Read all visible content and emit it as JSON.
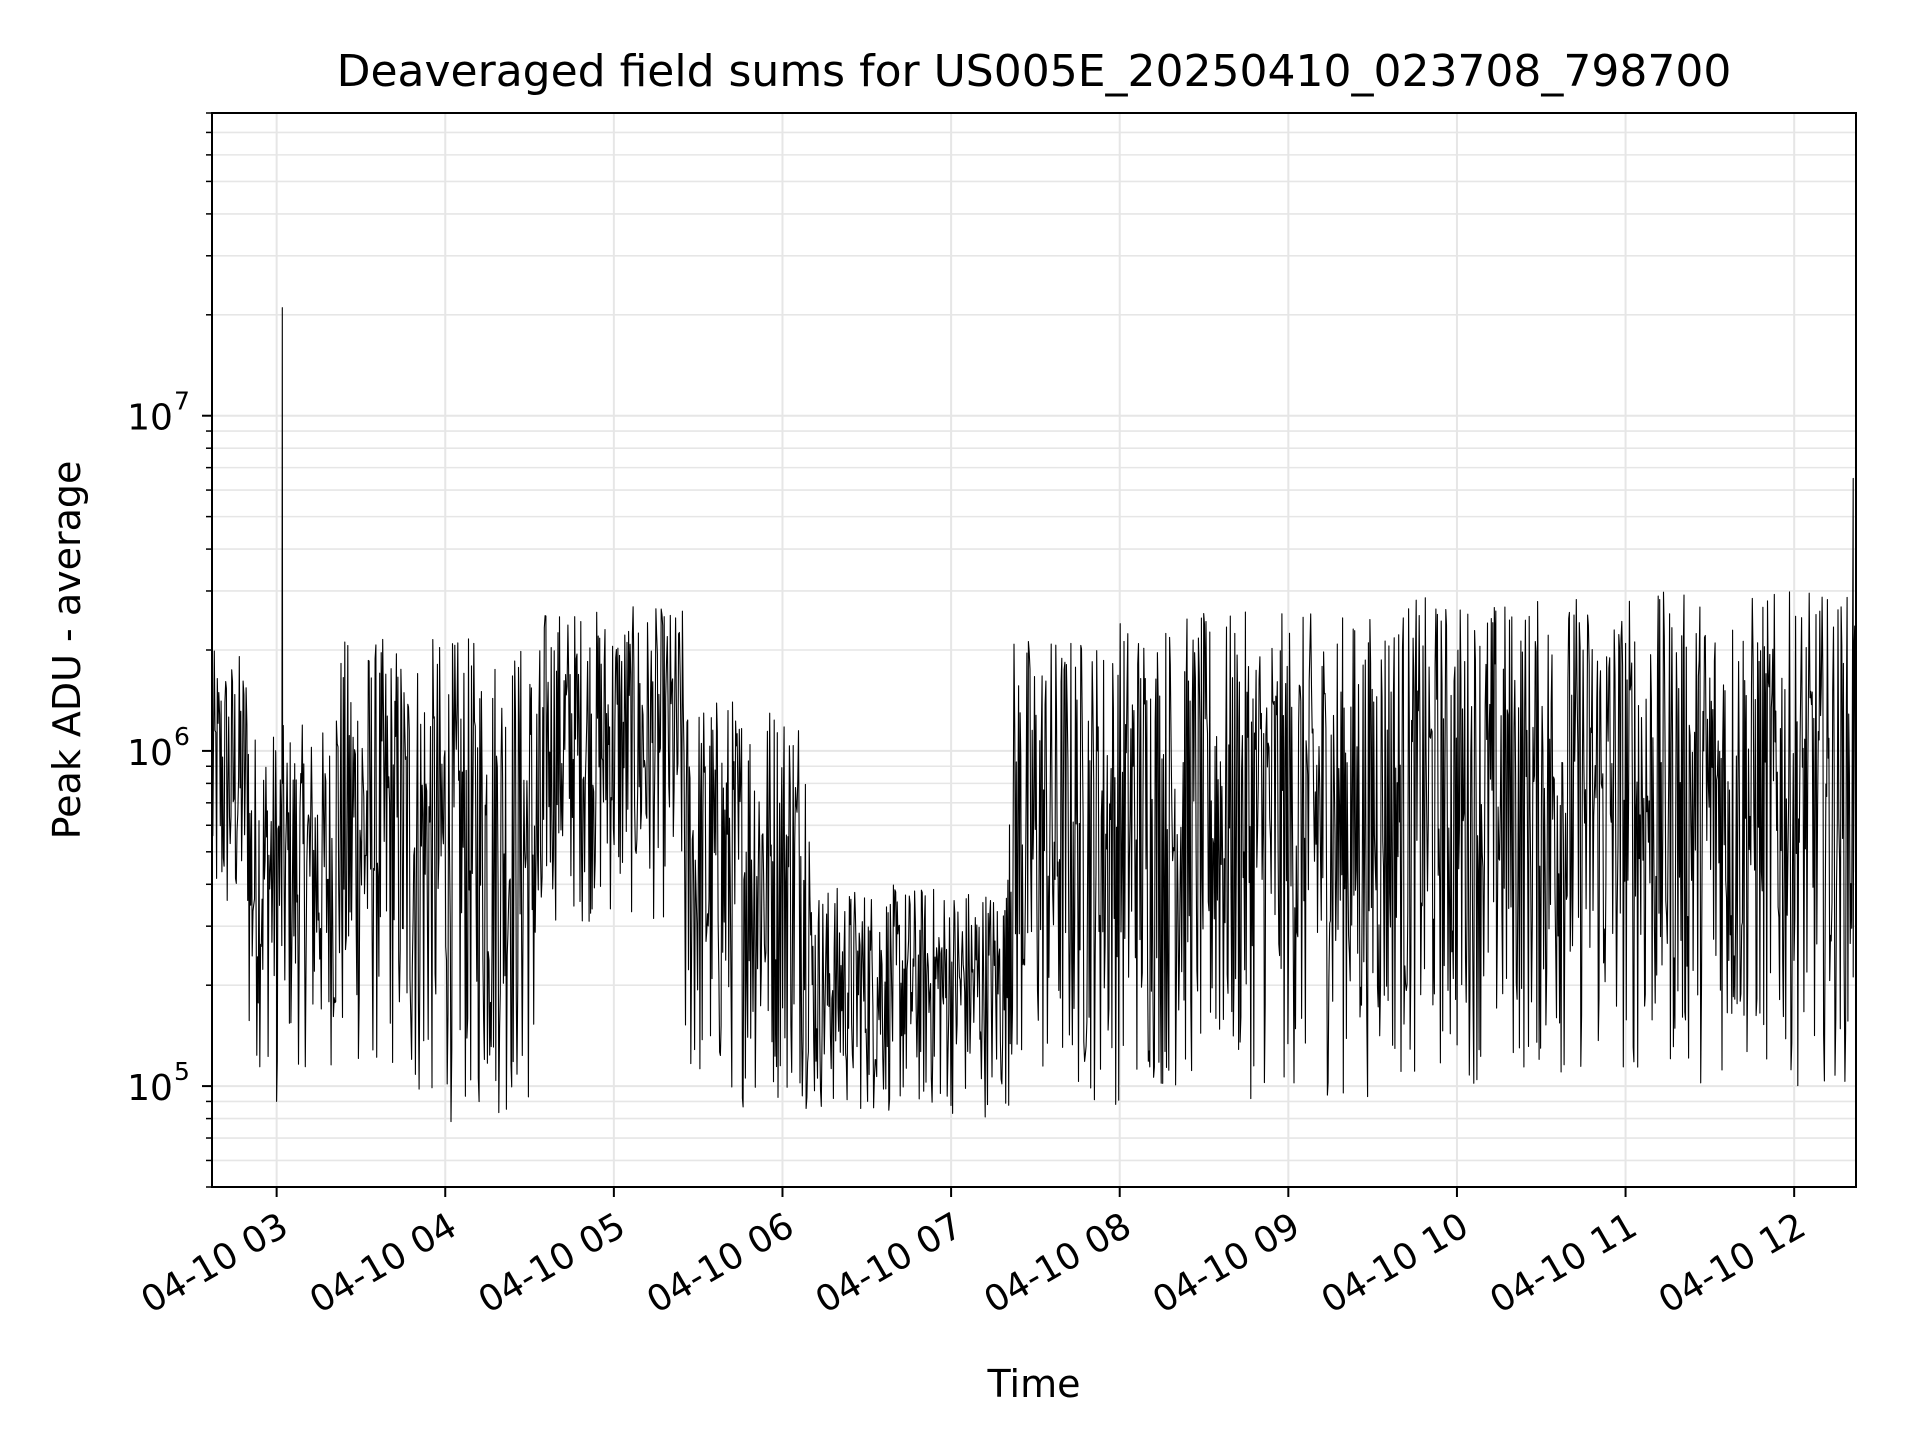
{
  "chart_data": {
    "type": "line",
    "title": "Deaveraged field sums for US005E_20250410_023708_798700",
    "xlabel": "Time",
    "ylabel": "Peak ADU - average",
    "yscale": "log",
    "ylim": [
      50000,
      80000000
    ],
    "xlim": [
      "04-10 02:37",
      "04-10 12:22"
    ],
    "grid": true,
    "line_color": "#000000",
    "grid_color": "#e6e6e6",
    "x_ticks": [
      "04-10 03",
      "04-10 04",
      "04-10 05",
      "04-10 06",
      "04-10 07",
      "04-10 08",
      "04-10 09",
      "04-10 10",
      "04-10 11",
      "04-10 12"
    ],
    "y_ticks": [
      {
        "base": "10",
        "exp": "5",
        "value": 100000
      },
      {
        "base": "10",
        "exp": "6",
        "value": 1000000
      },
      {
        "base": "10",
        "exp": "7",
        "value": 10000000
      }
    ],
    "series": [
      {
        "note_envelope": "peak ADU envelope per time segment (approx)",
        "segments": [
          {
            "start": "04-10 02:37",
            "end": "04-10 02:50",
            "low": 250000,
            "high": 2000000
          },
          {
            "start": "04-10 02:50",
            "end": "04-10 03:20",
            "low": 110000,
            "high": 1200000
          },
          {
            "start": "04-10 03:20",
            "end": "04-10 03:45",
            "low": 100000,
            "high": 2200000
          },
          {
            "start": "04-10 03:45",
            "end": "04-10 04:35",
            "low": 75000,
            "high": 2200000
          },
          {
            "start": "04-10 04:35",
            "end": "04-10 05:25",
            "low": 300000,
            "high": 2700000
          },
          {
            "start": "04-10 05:25",
            "end": "04-10 06:10",
            "low": 85000,
            "high": 1500000
          },
          {
            "start": "04-10 06:10",
            "end": "04-10 07:20",
            "low": 80000,
            "high": 400000
          },
          {
            "start": "04-10 07:20",
            "end": "04-10 08:00",
            "low": 85000,
            "high": 2300000
          },
          {
            "start": "04-10 08:00",
            "end": "04-10 09:30",
            "low": 90000,
            "high": 2600000
          },
          {
            "start": "04-10 09:30",
            "end": "04-10 10:30",
            "low": 100000,
            "high": 2900000
          },
          {
            "start": "04-10 10:30",
            "end": "04-10 12:22",
            "low": 100000,
            "high": 3000000
          }
        ],
        "spikes": [
          {
            "x": "04-10 03:00",
            "y": 90000
          },
          {
            "x": "04-10 03:02",
            "y": 21000000
          },
          {
            "x": "04-10 12:21",
            "y": 6500000
          }
        ]
      }
    ]
  }
}
